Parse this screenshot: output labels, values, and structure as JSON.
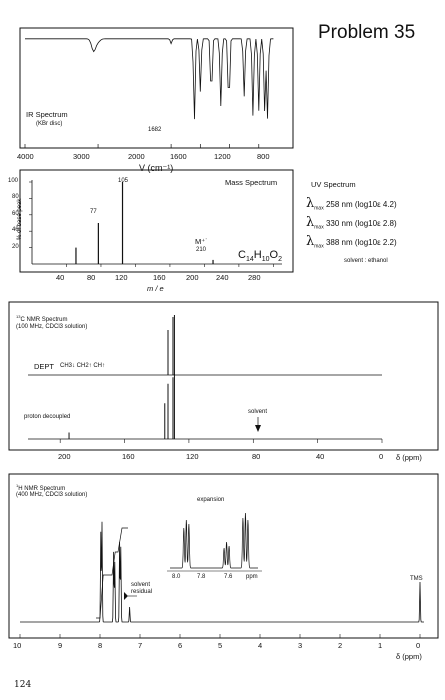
{
  "page": {
    "problem_title": "Problem 35",
    "page_number": "124"
  },
  "ir": {
    "title": "IR Spectrum",
    "subtitle": "(KBr disc)",
    "peak_label": "1682",
    "x_ticks": [
      "4000",
      "3000",
      "2000",
      "1600",
      "1200",
      "800"
    ],
    "x_label": "V (cm⁻¹)"
  },
  "mass": {
    "title": "Mass Spectrum",
    "y_label": "% of base peak",
    "y_ticks": [
      "100",
      "80",
      "60",
      "40",
      "20"
    ],
    "x_ticks": [
      "40",
      "80",
      "120",
      "160",
      "200",
      "240",
      "280"
    ],
    "x_label": "m / e",
    "peak_labels": {
      "p105": "105",
      "p77": "77",
      "m_ion": "M⁺˙",
      "p210": "210"
    },
    "formula": "C14H10O2"
  },
  "uv": {
    "title": "UV Spectrum",
    "lines": [
      {
        "lambda": "λ",
        "sub": "max",
        "text": "258 nm  (log10ε 4.2)"
      },
      {
        "lambda": "λ",
        "sub": "max",
        "text": "330 nm  (log10ε 2.8)"
      },
      {
        "lambda": "λ",
        "sub": "max",
        "text": "388 nm  (log10ε 2.2)"
      }
    ],
    "solvent": "solvent : ethanol"
  },
  "c13": {
    "title": "13C NMR Spectrum",
    "subtitle": "(100 MHz, CDCl3 solution)",
    "dept_label": "DEPT",
    "dept_legend": "CH3↓ CH2↑ CH↑",
    "proton_label": "proton decoupled",
    "solvent_label": "solvent",
    "x_ticks": [
      "200",
      "160",
      "120",
      "80",
      "40",
      "0"
    ],
    "x_label": "δ (ppm)"
  },
  "h1": {
    "title": "1H NMR Spectrum",
    "subtitle": "(400 MHz, CDCl3 solution)",
    "expansion_label": "expansion",
    "expansion_ticks": [
      "8.0",
      "7.8",
      "7.6",
      "ppm"
    ],
    "solvent_label": "solvent\nresidual",
    "tms_label": "TMS",
    "x_ticks": [
      "10",
      "9",
      "8",
      "7",
      "6",
      "5",
      "4",
      "3",
      "2",
      "1",
      "0"
    ],
    "x_label": "δ (ppm)"
  },
  "chart_data": [
    {
      "type": "line",
      "title": "IR Spectrum",
      "xlabel": "V (cm-1)",
      "xlim": [
        4000,
        400
      ],
      "annotations": [
        {
          "x": 1682,
          "label": "1682"
        }
      ],
      "x": [
        4000,
        3060,
        3000,
        2000,
        1682,
        1600,
        1450,
        1320,
        1210,
        1000,
        880,
        800,
        720,
        680
      ],
      "y": [
        95,
        82,
        92,
        90,
        10,
        40,
        30,
        25,
        20,
        35,
        15,
        20,
        20,
        12
      ]
    },
    {
      "type": "bar",
      "title": "Mass Spectrum",
      "xlabel": "m / e",
      "ylabel": "% of base peak",
      "xlim": [
        0,
        290
      ],
      "ylim": [
        0,
        100
      ],
      "x": [
        51,
        77,
        105,
        210
      ],
      "values": [
        20,
        50,
        100,
        5
      ]
    },
    {
      "type": "bar",
      "title": "13C NMR Spectrum (proton decoupled)",
      "xlabel": "δ (ppm)",
      "xlim": [
        220,
        0
      ],
      "x": [
        194.5,
        135.0,
        133.0,
        129.9,
        129.0,
        77.0
      ],
      "values": [
        10,
        55,
        85,
        95,
        100,
        15
      ]
    },
    {
      "type": "line",
      "title": "1H NMR Spectrum",
      "xlabel": "δ (ppm)",
      "xlim": [
        10,
        0
      ],
      "x": [
        7.98,
        7.66,
        7.51,
        7.26,
        0
      ],
      "values": [
        4,
        2,
        4,
        0.3,
        0.5
      ]
    }
  ]
}
